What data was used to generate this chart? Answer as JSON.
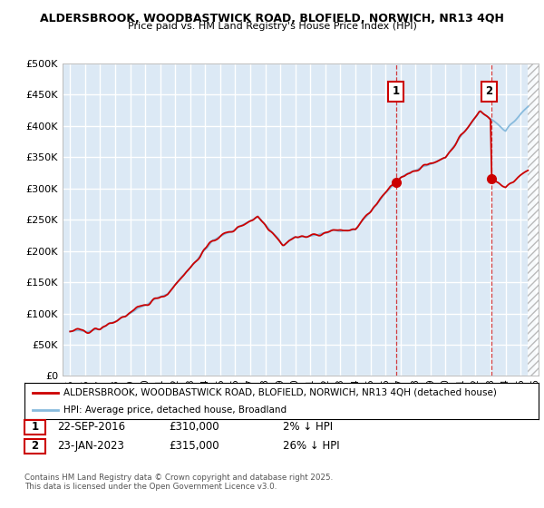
{
  "title_line1": "ALDERSBROOK, WOODBASTWICK ROAD, BLOFIELD, NORWICH, NR13 4QH",
  "title_line2": "Price paid vs. HM Land Registry's House Price Index (HPI)",
  "plot_bg_color": "#dce9f5",
  "grid_color": "#ffffff",
  "line1_color": "#cc0000",
  "line2_color": "#88bbdd",
  "legend_label1": "ALDERSBROOK, WOODBASTWICK ROAD, BLOFIELD, NORWICH, NR13 4QH (detached house)",
  "legend_label2": "HPI: Average price, detached house, Broadland",
  "sale1_date": "22-SEP-2016",
  "sale1_price": "£310,000",
  "sale1_note": "2% ↓ HPI",
  "sale2_date": "23-JAN-2023",
  "sale2_price": "£315,000",
  "sale2_note": "26% ↓ HPI",
  "footer": "Contains HM Land Registry data © Crown copyright and database right 2025.\nThis data is licensed under the Open Government Licence v3.0.",
  "ylim": [
    0,
    500000
  ],
  "yticks": [
    0,
    50000,
    100000,
    150000,
    200000,
    250000,
    300000,
    350000,
    400000,
    450000,
    500000
  ],
  "sale1_x": 2016.73,
  "sale1_y": 310000,
  "sale2_x": 2023.07,
  "sale2_y": 315000,
  "vline1_x": 2016.73,
  "vline2_x": 2023.07,
  "xlim_left": 1994.5,
  "xlim_right": 2026.2
}
